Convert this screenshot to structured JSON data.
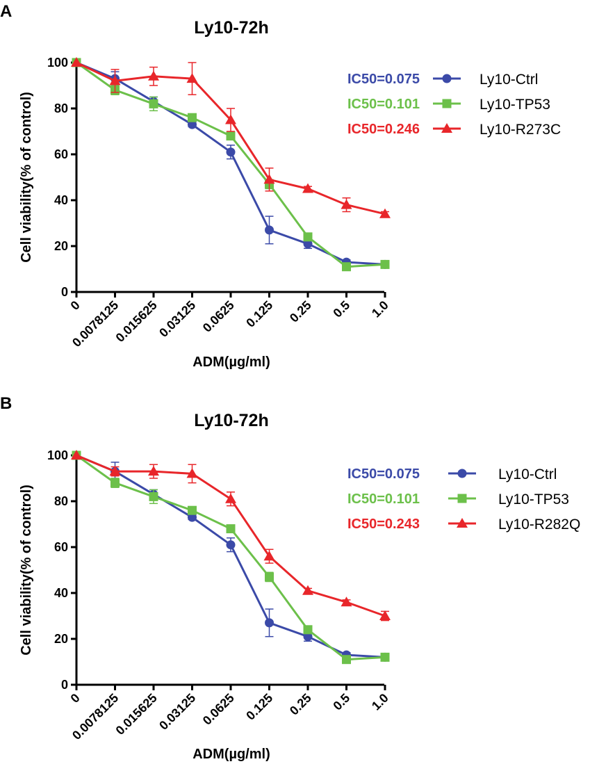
{
  "colors": {
    "ctrl": "#3b4aa8",
    "tp53": "#6cc04a",
    "mut": "#e8262a"
  },
  "chart_data": [
    {
      "panel": "A",
      "type": "line",
      "title": "Ly10-72h",
      "xlabel": "ADM(µg/ml)",
      "ylabel": "Cell viability(% of control)",
      "categories": [
        "0",
        "0.0078125",
        "0.015625",
        "0.03125",
        "0.0625",
        "0.125",
        "0.25",
        "0.5",
        "1.0"
      ],
      "ylim": [
        0,
        100
      ],
      "yticks": [
        0,
        20,
        40,
        60,
        80,
        100
      ],
      "legend_position": "right",
      "series": [
        {
          "name": "Ly10-Ctrl",
          "marker": "circle",
          "color_key": "ctrl",
          "ic50": "IC50=0.075",
          "values": [
            100,
            93,
            83,
            73,
            61,
            27,
            21,
            13,
            12
          ],
          "errors": [
            0,
            3,
            2,
            1,
            3,
            6,
            2,
            1,
            1
          ]
        },
        {
          "name": "Ly10-TP53",
          "marker": "square",
          "color_key": "tp53",
          "ic50": "IC50=0.101",
          "values": [
            100,
            88,
            82,
            76,
            68,
            47,
            24,
            11,
            12
          ],
          "errors": [
            0,
            2,
            3,
            1,
            1,
            2,
            1,
            1,
            1
          ]
        },
        {
          "name": "Ly10-R273C",
          "marker": "triangle",
          "color_key": "mut",
          "ic50": "IC50=0.246",
          "values": [
            100,
            92,
            94,
            93,
            75,
            49,
            45,
            38,
            34
          ],
          "errors": [
            0,
            5,
            4,
            7,
            5,
            5,
            1,
            3,
            1
          ]
        }
      ]
    },
    {
      "panel": "B",
      "type": "line",
      "title": "Ly10-72h",
      "xlabel": "ADM(µg/ml)",
      "ylabel": "Cell viability(% of control)",
      "categories": [
        "0",
        "0.0078125",
        "0.015625",
        "0.03125",
        "0.0625",
        "0.125",
        "0.25",
        "0.5",
        "1.0"
      ],
      "ylim": [
        0,
        100
      ],
      "yticks": [
        0,
        20,
        40,
        60,
        80,
        100
      ],
      "legend_position": "right",
      "series": [
        {
          "name": "Ly10-Ctrl",
          "marker": "circle",
          "color_key": "ctrl",
          "ic50": "IC50=0.075",
          "values": [
            100,
            93,
            83,
            73,
            61,
            27,
            21,
            13,
            12
          ],
          "errors": [
            0,
            4,
            2,
            1,
            3,
            6,
            2,
            1,
            1
          ]
        },
        {
          "name": "Ly10-TP53",
          "marker": "square",
          "color_key": "tp53",
          "ic50": "IC50=0.101",
          "values": [
            100,
            88,
            82,
            76,
            68,
            47,
            24,
            11,
            12
          ],
          "errors": [
            0,
            2,
            3,
            1,
            1,
            2,
            1,
            1,
            1
          ]
        },
        {
          "name": "Ly10-R282Q",
          "marker": "triangle",
          "color_key": "mut",
          "ic50": "IC50=0.243",
          "values": [
            100,
            93,
            93,
            92,
            81,
            56,
            41,
            36,
            30
          ],
          "errors": [
            0,
            2,
            3,
            4,
            3,
            3,
            1,
            1,
            2
          ]
        }
      ]
    }
  ]
}
